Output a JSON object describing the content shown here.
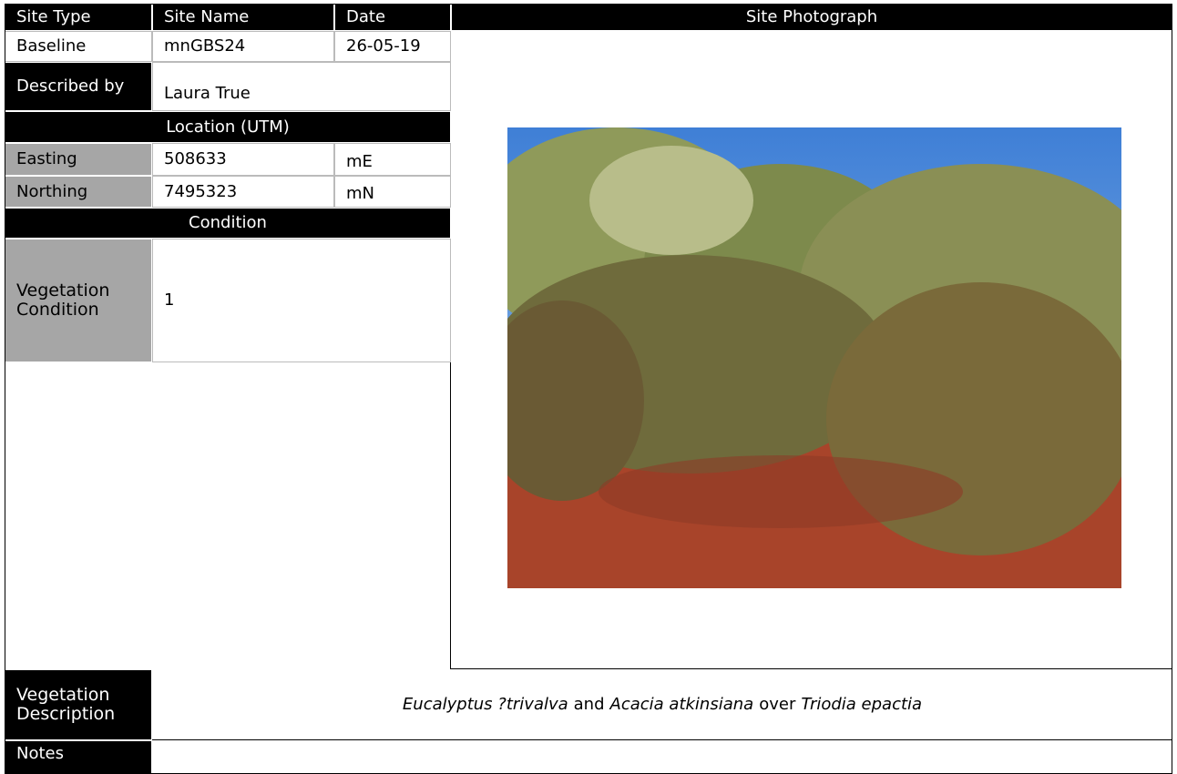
{
  "header": {
    "site_type_label": "Site Type",
    "site_name_label": "Site Name",
    "date_label": "Date",
    "photo_label": "Site Photograph"
  },
  "site": {
    "site_type": "Baseline",
    "site_name": "mnGBS24",
    "date": "26-05-19"
  },
  "described_by": {
    "label": "Described by",
    "value": "Laura True"
  },
  "location": {
    "title": "Location (UTM)",
    "easting": {
      "label": "Easting",
      "value": "508633",
      "unit": "mE"
    },
    "northing": {
      "label": "Northing",
      "value": "7495323",
      "unit": "mN"
    }
  },
  "condition": {
    "title": "Condition",
    "label": "Vegetation Condition",
    "value": "1"
  },
  "vegetation_description": {
    "label": "Vegetation Description",
    "parts": [
      {
        "text": "Eucalyptus ?trivalva",
        "italic": true
      },
      {
        "text": "and",
        "italic": false
      },
      {
        "text": "Acacia atkinsiana",
        "italic": true
      },
      {
        "text": "over",
        "italic": false
      },
      {
        "text": "Triodia epactia",
        "italic": true
      }
    ]
  },
  "notes": {
    "label": "Notes"
  }
}
